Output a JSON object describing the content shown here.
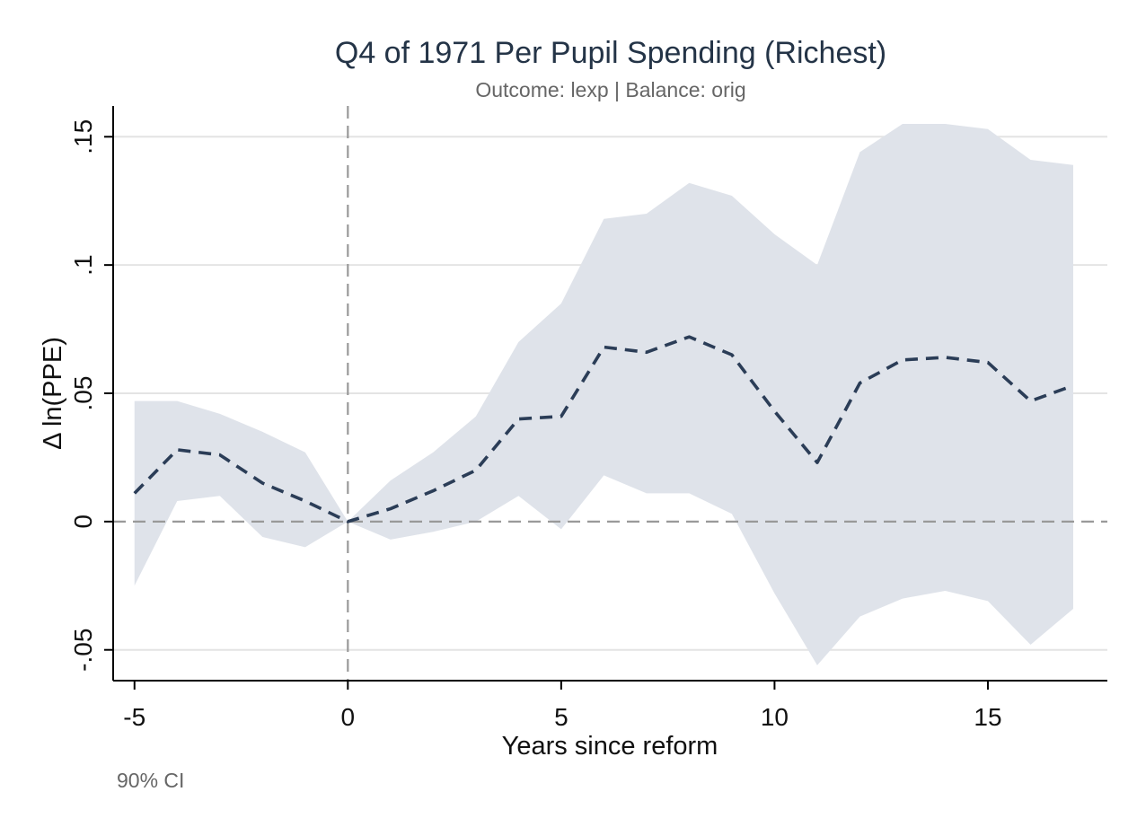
{
  "chart_data": {
    "type": "line",
    "title": "Q4 of 1971 Per Pupil Spending (Richest)",
    "subtitle": "Outcome: lexp | Balance: orig",
    "xlabel": "Years since reform",
    "ylabel": "Δ ln(PPE)",
    "note": "90% CI",
    "xlim": [
      -5.5,
      17.8
    ],
    "ylim": [
      -0.062,
      0.162
    ],
    "x_ticks": [
      -5,
      0,
      5,
      10,
      15
    ],
    "x_tick_labels": [
      "-5",
      "0",
      "5",
      "10",
      "15"
    ],
    "y_ticks": [
      -0.05,
      0,
      0.05,
      0.1,
      0.15
    ],
    "y_tick_labels": [
      "-.05",
      "0",
      ".05",
      ".1",
      ".15"
    ],
    "grid": true,
    "reference_lines": {
      "x": 0,
      "y": 0
    },
    "colors": {
      "line": "#2b3d57",
      "band": "#dfe3ea",
      "grid": "#e4e4e4",
      "reference": "#999999"
    },
    "series": [
      {
        "x": [
          -5,
          -4,
          -3,
          -2,
          -1,
          0,
          1,
          2,
          3,
          4,
          5,
          6,
          7,
          8,
          9,
          10,
          11,
          12,
          13,
          14,
          15,
          16,
          17
        ],
        "estimate": [
          0.011,
          0.028,
          0.026,
          0.015,
          0.008,
          0.0,
          0.005,
          0.012,
          0.02,
          0.04,
          0.041,
          0.068,
          0.066,
          0.072,
          0.065,
          0.043,
          0.023,
          0.054,
          0.063,
          0.064,
          0.062,
          0.047,
          0.053
        ],
        "ci_upper": [
          0.047,
          0.047,
          0.042,
          0.035,
          0.027,
          0.0,
          0.016,
          0.027,
          0.041,
          0.07,
          0.085,
          0.118,
          0.12,
          0.132,
          0.127,
          0.112,
          0.1,
          0.144,
          0.155,
          0.155,
          0.153,
          0.141,
          0.139
        ],
        "ci_lower": [
          -0.025,
          0.008,
          0.01,
          -0.006,
          -0.01,
          0.0,
          -0.007,
          -0.004,
          0.0,
          0.01,
          -0.003,
          0.018,
          0.011,
          0.011,
          0.003,
          -0.028,
          -0.056,
          -0.037,
          -0.03,
          -0.027,
          -0.031,
          -0.048,
          -0.034
        ]
      }
    ]
  }
}
